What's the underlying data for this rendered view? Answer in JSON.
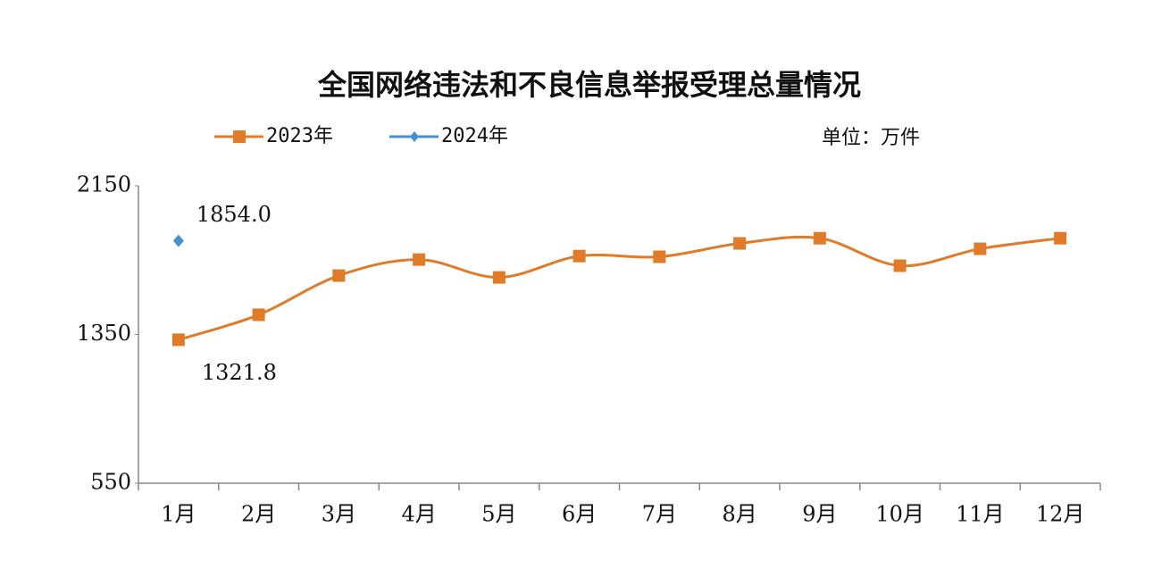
{
  "chart_data": {
    "type": "line",
    "title": "全国网络违法和不良信息举报受理总量情况",
    "unit_label": "单位：万件",
    "categories": [
      "1月",
      "2月",
      "3月",
      "4月",
      "5月",
      "6月",
      "7月",
      "8月",
      "9月",
      "10月",
      "11月",
      "12月"
    ],
    "series": [
      {
        "name": "2023年",
        "color": "#e07b29",
        "marker": "square",
        "values": [
          1321.8,
          1456,
          1667,
          1753,
          1657,
          1772,
          1768,
          1840,
          1868,
          1720,
          1811,
          1868
        ],
        "value_labels": [
          "1321.8",
          null,
          null,
          null,
          null,
          null,
          null,
          null,
          null,
          null,
          null,
          null
        ]
      },
      {
        "name": "2024年",
        "color": "#4a8fd0",
        "marker": "diamond",
        "values": [
          1854.0,
          null,
          null,
          null,
          null,
          null,
          null,
          null,
          null,
          null,
          null,
          null
        ],
        "value_labels": [
          "1854.0",
          null,
          null,
          null,
          null,
          null,
          null,
          null,
          null,
          null,
          null,
          null
        ]
      }
    ],
    "ylim": [
      550,
      2150
    ],
    "yticks": [
      550,
      1350,
      2150
    ],
    "smooth": true
  }
}
